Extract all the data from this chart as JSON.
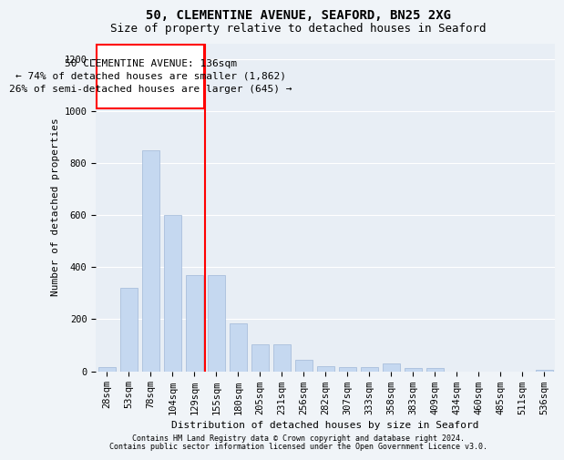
{
  "title1": "50, CLEMENTINE AVENUE, SEAFORD, BN25 2XG",
  "title2": "Size of property relative to detached houses in Seaford",
  "xlabel": "Distribution of detached houses by size in Seaford",
  "ylabel": "Number of detached properties",
  "footer1": "Contains HM Land Registry data © Crown copyright and database right 2024.",
  "footer2": "Contains public sector information licensed under the Open Government Licence v3.0.",
  "categories": [
    "28sqm",
    "53sqm",
    "78sqm",
    "104sqm",
    "129sqm",
    "155sqm",
    "180sqm",
    "205sqm",
    "231sqm",
    "256sqm",
    "282sqm",
    "307sqm",
    "333sqm",
    "358sqm",
    "383sqm",
    "409sqm",
    "434sqm",
    "460sqm",
    "485sqm",
    "511sqm",
    "536sqm"
  ],
  "values": [
    15,
    320,
    850,
    600,
    370,
    370,
    185,
    105,
    105,
    45,
    20,
    15,
    15,
    30,
    12,
    12,
    0,
    0,
    0,
    0,
    5
  ],
  "bar_color": "#c5d8f0",
  "bar_edge_color": "#a0b8d8",
  "bar_width": 0.8,
  "ylim": [
    0,
    1260
  ],
  "yticks": [
    0,
    200,
    400,
    600,
    800,
    1000,
    1200
  ],
  "red_line_x": 4.5,
  "annotation_line1": "50 CLEMENTINE AVENUE: 136sqm",
  "annotation_line2": "← 74% of detached houses are smaller (1,862)",
  "annotation_line3": "26% of semi-detached houses are larger (645) →",
  "bg_color": "#f0f4f8",
  "plot_bg_color": "#e8eef5",
  "grid_color": "#ffffff",
  "title_fontsize": 10,
  "subtitle_fontsize": 9,
  "axis_label_fontsize": 8,
  "tick_fontsize": 7.5,
  "annotation_fontsize": 8,
  "footer_fontsize": 6
}
